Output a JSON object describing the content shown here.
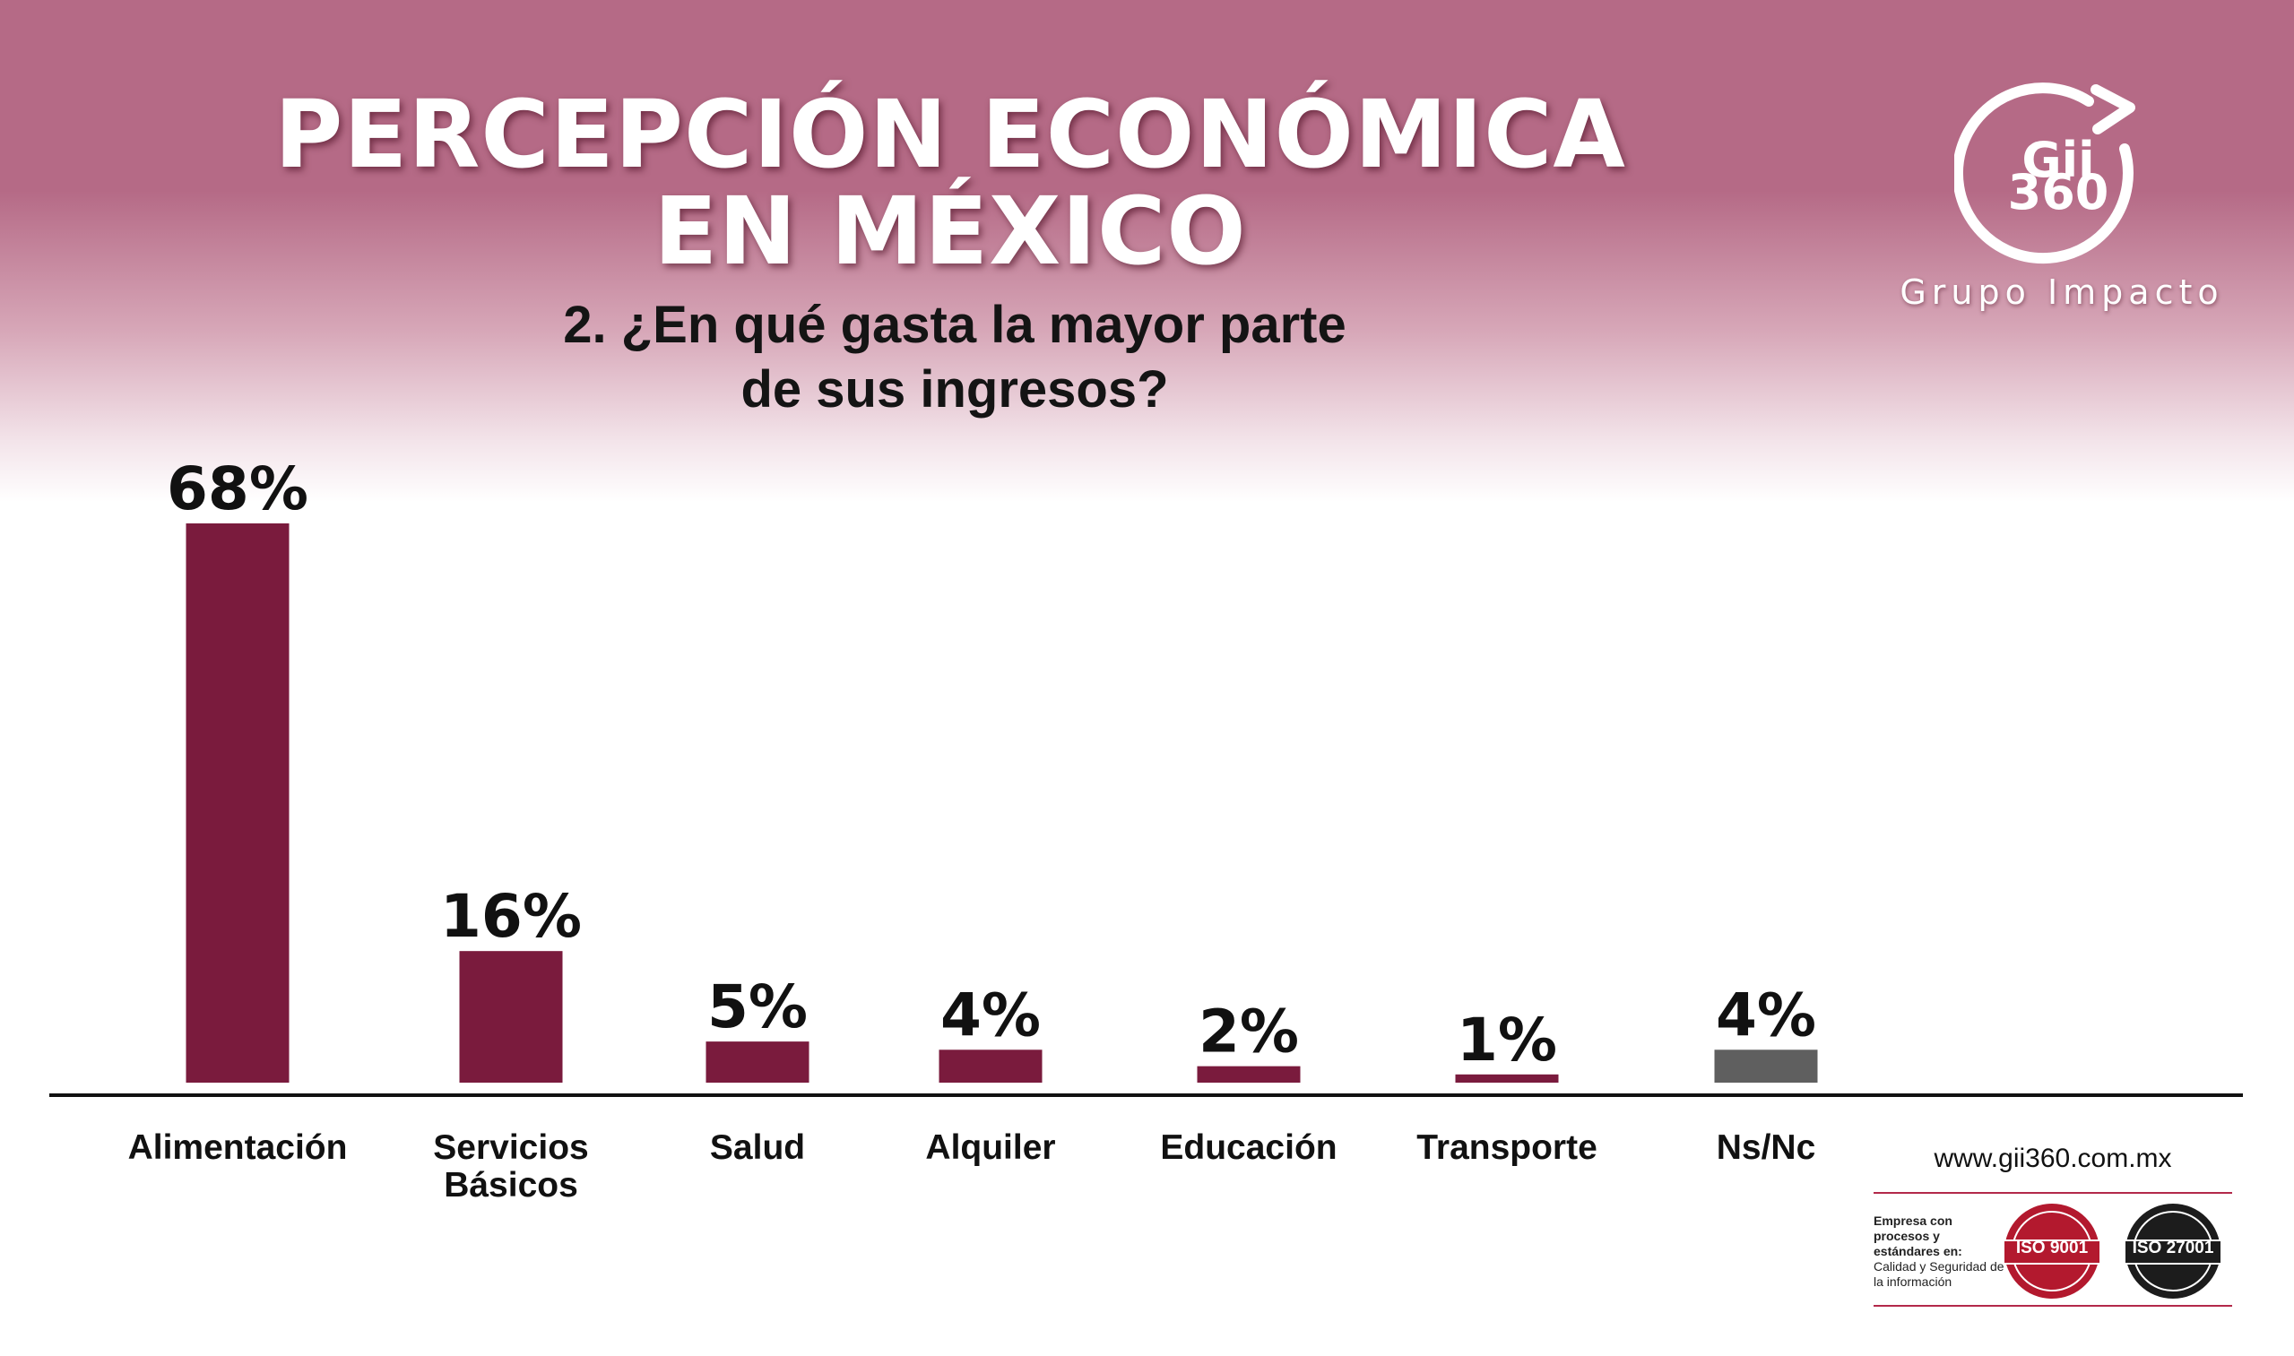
{
  "header": {
    "title_line1": "PERCEPCIÓN ECONÓMICA",
    "title_line2": "EN MÉXICO",
    "question_line1": "2. ¿En qué gasta la mayor parte",
    "question_line2": "de sus ingresos?"
  },
  "logo": {
    "text_line1": "Gii",
    "text_line2": "360",
    "subtitle": "Grupo Impacto"
  },
  "colors": {
    "header_bg": "#b56a86",
    "bar_main": "#7a1b3d",
    "bar_other": "#5f5f5f",
    "axis": "#111111"
  },
  "chart_data": {
    "type": "bar",
    "categories": [
      "Alimentación",
      "Servicios Básicos",
      "Salud",
      "Alquiler",
      "Educación",
      "Transporte",
      "Ns/Nc"
    ],
    "category_lines": [
      [
        "Alimentación"
      ],
      [
        "Servicios",
        "Básicos"
      ],
      [
        "Salud"
      ],
      [
        "Alquiler"
      ],
      [
        "Educación"
      ],
      [
        "Transporte"
      ],
      [
        "Ns/Nc"
      ]
    ],
    "values": [
      68,
      16,
      5,
      4,
      2,
      1,
      4
    ],
    "value_labels": [
      "68%",
      "16%",
      "5%",
      "4%",
      "2%",
      "1%",
      "4%"
    ],
    "bar_colors": [
      "#7a1b3d",
      "#7a1b3d",
      "#7a1b3d",
      "#7a1b3d",
      "#7a1b3d",
      "#7a1b3d",
      "#5f5f5f"
    ],
    "ylim": [
      0,
      68
    ],
    "grid": false,
    "legend": "none"
  },
  "footer": {
    "url": "www.gii360.com.mx",
    "note_bold": "Empresa con procesos y estándares en:",
    "note_text": "Calidad y Seguridad de la información",
    "badge1": "ISO 9001",
    "badge2": "ISO 27001"
  }
}
